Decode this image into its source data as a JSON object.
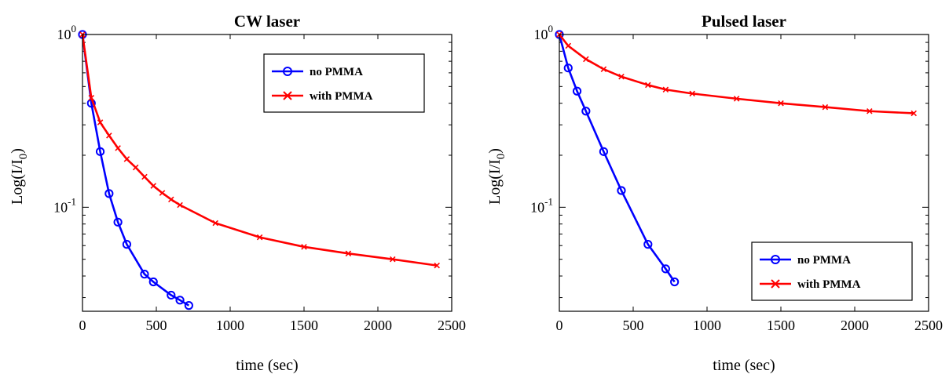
{
  "chart_data": [
    {
      "type": "line",
      "title": "CW laser",
      "xlabel": "time (sec)",
      "ylabel_base": "Log(I/I",
      "ylabel_sub": "0",
      "ylabel_close": ")",
      "xlim": [
        0,
        2500
      ],
      "ylim": [
        0.025,
        1
      ],
      "yscale": "log",
      "xticks": [
        0,
        500,
        1000,
        1500,
        2000,
        2500
      ],
      "xtick_labels": [
        "0",
        "500",
        "1000",
        "1500",
        "2000",
        "2500"
      ],
      "ytick_labels": [
        {
          "value": 1,
          "base": "10",
          "exp": "0"
        },
        {
          "value": 0.1,
          "base": "10",
          "exp": "-1"
        }
      ],
      "legend_position": "top-right",
      "series": [
        {
          "name": "no PMMA",
          "color": "#0000ff",
          "marker": "circle",
          "x": [
            0,
            60,
            120,
            180,
            240,
            300,
            420,
            480,
            600,
            660,
            720
          ],
          "y": [
            1.0,
            0.4,
            0.21,
            0.12,
            0.082,
            0.061,
            0.041,
            0.037,
            0.031,
            0.029,
            0.027
          ]
        },
        {
          "name": "with PMMA",
          "color": "#ff0000",
          "marker": "x",
          "x": [
            0,
            60,
            120,
            180,
            240,
            300,
            360,
            420,
            480,
            540,
            600,
            660,
            900,
            1200,
            1500,
            1800,
            2100,
            2400
          ],
          "y": [
            1.0,
            0.43,
            0.31,
            0.26,
            0.22,
            0.19,
            0.17,
            0.15,
            0.133,
            0.121,
            0.111,
            0.103,
            0.081,
            0.067,
            0.059,
            0.054,
            0.05,
            0.046
          ]
        }
      ]
    },
    {
      "type": "line",
      "title": "Pulsed laser",
      "xlabel": "time (sec)",
      "ylabel_base": "Log(I/I",
      "ylabel_sub": "0",
      "ylabel_close": ")",
      "xlim": [
        0,
        2500
      ],
      "ylim": [
        0.025,
        1
      ],
      "yscale": "log",
      "xticks": [
        0,
        500,
        1000,
        1500,
        2000,
        2500
      ],
      "xtick_labels": [
        "0",
        "500",
        "1000",
        "1500",
        "2000",
        "2500"
      ],
      "ytick_labels": [
        {
          "value": 1,
          "base": "10",
          "exp": "0"
        },
        {
          "value": 0.1,
          "base": "10",
          "exp": "-1"
        }
      ],
      "legend_position": "bottom-right",
      "series": [
        {
          "name": "no PMMA",
          "color": "#0000ff",
          "marker": "circle",
          "x": [
            0,
            60,
            120,
            180,
            300,
            420,
            600,
            720,
            780
          ],
          "y": [
            1.0,
            0.64,
            0.47,
            0.36,
            0.21,
            0.125,
            0.061,
            0.044,
            0.037
          ]
        },
        {
          "name": "with PMMA",
          "color": "#ff0000",
          "marker": "x",
          "x": [
            0,
            60,
            180,
            300,
            420,
            600,
            720,
            900,
            1200,
            1500,
            1800,
            2100,
            2400
          ],
          "y": [
            1.0,
            0.86,
            0.72,
            0.63,
            0.57,
            0.51,
            0.48,
            0.455,
            0.425,
            0.4,
            0.38,
            0.36,
            0.35
          ]
        }
      ]
    }
  ]
}
